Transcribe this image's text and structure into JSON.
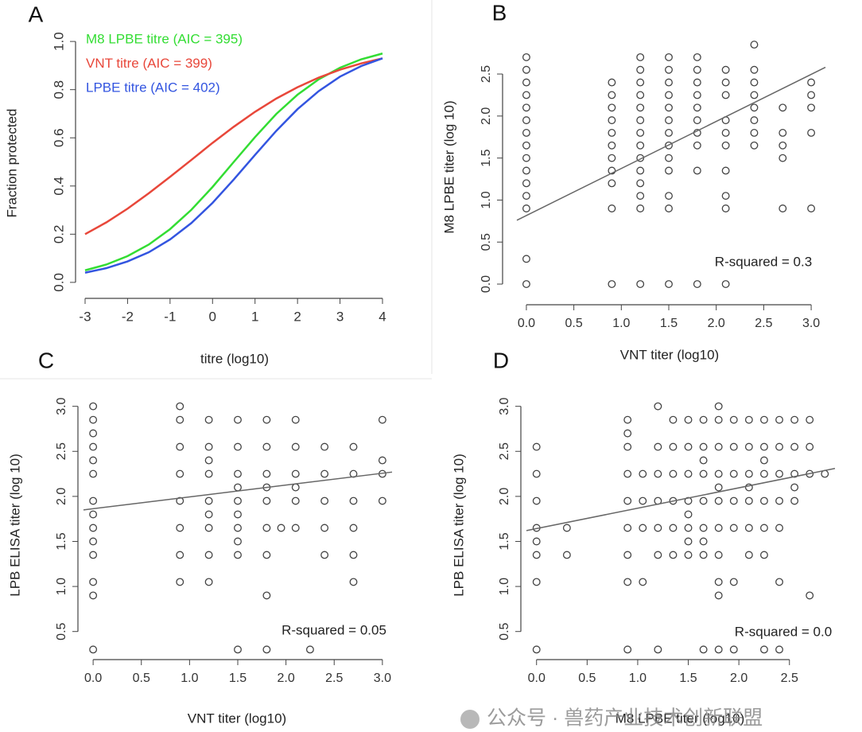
{
  "chart_data": [
    {
      "type": "line",
      "label": "A",
      "xlabel": "titre (log10)",
      "ylabel": "Fraction protected",
      "x": [
        -3,
        -2.5,
        -2,
        -1.5,
        -1,
        -0.5,
        0,
        0.5,
        1,
        1.5,
        2,
        2.5,
        3,
        3.5,
        4
      ],
      "series": [
        {
          "name": "M8 LPBE titre (AIC = 395)",
          "color": "#33dd33",
          "values": [
            0.05,
            0.074,
            0.109,
            0.157,
            0.221,
            0.301,
            0.396,
            0.5,
            0.603,
            0.699,
            0.779,
            0.843,
            0.891,
            0.926,
            0.95
          ]
        },
        {
          "name": "VNT titre (AIC = 399)",
          "color": "#e8473a",
          "values": [
            0.2,
            0.249,
            0.306,
            0.37,
            0.438,
            0.508,
            0.579,
            0.646,
            0.708,
            0.763,
            0.81,
            0.85,
            0.883,
            0.909,
            0.93
          ]
        },
        {
          "name": "LPBE titre (AIC = 402)",
          "color": "#3355e0",
          "values": [
            0.04,
            0.059,
            0.087,
            0.125,
            0.178,
            0.246,
            0.33,
            0.427,
            0.529,
            0.629,
            0.719,
            0.794,
            0.854,
            0.898,
            0.93
          ]
        }
      ],
      "xlim": [
        -3.2,
        4.2
      ],
      "xticks": [
        -3,
        -2,
        -1,
        0,
        1,
        2,
        3,
        4
      ],
      "ylim": [
        -0.04,
        1.04
      ],
      "yticks": [
        {
          "value": 0,
          "label": "0.0"
        },
        0.2,
        0.4,
        0.6,
        0.8,
        {
          "value": 1,
          "label": "1.0"
        }
      ],
      "legend": "upper-left"
    },
    {
      "type": "scatter",
      "label": "B",
      "xlabel": "VNT titer (log10)",
      "ylabel": "M8 LPBE titer (log 10)",
      "annotation": "R-squared = 0.3",
      "color": "#444444",
      "x": [
        0,
        0,
        0,
        0,
        0,
        0,
        0,
        0,
        0,
        0,
        0,
        0,
        0,
        0,
        0,
        0.9,
        0.9,
        0.9,
        0.9,
        0.9,
        0.9,
        0.9,
        0.9,
        0.9,
        0.9,
        0.9,
        1.2,
        1.2,
        1.2,
        1.2,
        1.2,
        1.2,
        1.2,
        1.2,
        1.2,
        1.2,
        1.2,
        1.2,
        1.2,
        1.2,
        1.5,
        1.5,
        1.5,
        1.5,
        1.5,
        1.5,
        1.5,
        1.5,
        1.5,
        1.5,
        1.5,
        1.5,
        1.5,
        1.8,
        1.8,
        1.8,
        1.8,
        1.8,
        1.8,
        1.8,
        1.8,
        1.8,
        1.8,
        2.1,
        2.1,
        2.1,
        2.1,
        2.1,
        2.1,
        2.1,
        2.1,
        2.1,
        2.1,
        2.4,
        2.4,
        2.4,
        2.4,
        2.4,
        2.4,
        2.4,
        2.4,
        2.7,
        2.7,
        2.7,
        2.7,
        2.7,
        3,
        3,
        3,
        3,
        3
      ],
      "values": [
        0,
        0.3,
        0.9,
        1.05,
        1.2,
        1.35,
        1.5,
        1.65,
        1.8,
        1.95,
        2.1,
        2.25,
        2.4,
        2.55,
        2.7,
        0,
        0.9,
        1.2,
        1.35,
        1.5,
        1.65,
        1.8,
        1.95,
        2.1,
        2.25,
        2.4,
        0,
        0.9,
        1.05,
        1.2,
        1.35,
        1.5,
        1.65,
        1.8,
        1.95,
        2.1,
        2.25,
        2.4,
        2.55,
        2.7,
        0,
        0.9,
        1.05,
        1.35,
        1.5,
        1.65,
        1.8,
        1.95,
        2.1,
        2.25,
        2.4,
        2.55,
        2.7,
        0,
        1.35,
        1.65,
        1.8,
        1.95,
        2.1,
        2.25,
        2.4,
        2.55,
        2.7,
        0,
        0.9,
        1.05,
        1.35,
        1.65,
        1.8,
        1.95,
        2.25,
        2.4,
        2.55,
        1.65,
        1.8,
        1.95,
        2.1,
        2.25,
        2.4,
        2.55,
        2.85,
        0.9,
        1.5,
        1.65,
        1.8,
        2.1,
        0.9,
        1.8,
        2.1,
        2.25,
        2.4
      ],
      "trend": {
        "x": [
          -0.1,
          3.15
        ],
        "y": [
          0.76,
          2.58
        ]
      },
      "xlim": [
        -0.1,
        3.15
      ],
      "xticks": [
        {
          "value": 0,
          "label": "0.0"
        },
        0.5,
        {
          "value": 1,
          "label": "1.0"
        },
        1.5,
        {
          "value": 2,
          "label": "2.0"
        },
        2.5,
        {
          "value": 3,
          "label": "3.0"
        }
      ],
      "ylim": [
        -0.1,
        2.9
      ],
      "yticks": [
        {
          "value": 0,
          "label": "0.0"
        },
        0.5,
        {
          "value": 1,
          "label": "1.0"
        },
        1.5,
        {
          "value": 2,
          "label": "2.0"
        },
        2.5
      ]
    },
    {
      "type": "scatter",
      "label": "C",
      "xlabel": "VNT titer (log10)",
      "ylabel": "LPB ELISA titer (log 10)",
      "annotation": "R-squared = 0.05",
      "color": "#444444",
      "x": [
        0,
        0,
        0,
        0,
        0,
        0,
        0,
        0,
        0,
        0,
        0,
        0,
        0,
        0,
        0.9,
        0.9,
        0.9,
        0.9,
        0.9,
        0.9,
        0.9,
        0.9,
        1.2,
        1.2,
        1.2,
        1.2,
        1.2,
        1.2,
        1.2,
        1.2,
        1.2,
        1.5,
        1.5,
        1.5,
        1.5,
        1.5,
        1.5,
        1.5,
        1.5,
        1.5,
        1.5,
        1.8,
        1.8,
        1.8,
        1.8,
        1.8,
        1.8,
        1.8,
        1.8,
        1.8,
        1.95,
        2.1,
        2.1,
        2.1,
        2.1,
        2.1,
        2.1,
        2.25,
        2.4,
        2.4,
        2.4,
        2.4,
        2.4,
        2.7,
        2.7,
        2.7,
        2.7,
        2.7,
        2.7,
        3,
        3,
        3,
        3
      ],
      "values": [
        0.3,
        0.9,
        1.05,
        1.35,
        1.5,
        1.65,
        1.8,
        1.95,
        2.25,
        2.4,
        2.55,
        2.7,
        2.85,
        3,
        1.05,
        1.35,
        1.65,
        1.95,
        2.25,
        2.55,
        2.85,
        3,
        1.05,
        1.35,
        1.65,
        1.8,
        1.95,
        2.25,
        2.4,
        2.55,
        2.85,
        0.3,
        1.35,
        1.5,
        1.65,
        1.8,
        1.95,
        2.1,
        2.25,
        2.55,
        2.85,
        0.3,
        0.9,
        1.35,
        1.65,
        1.95,
        2.1,
        2.25,
        2.55,
        2.85,
        1.65,
        1.65,
        1.95,
        2.1,
        2.25,
        2.55,
        2.85,
        0.3,
        1.35,
        1.65,
        1.95,
        2.25,
        2.55,
        1.05,
        1.35,
        1.65,
        1.95,
        2.25,
        2.55,
        1.95,
        2.25,
        2.4,
        2.85
      ],
      "trend": {
        "x": [
          -0.1,
          3.1
        ],
        "y": [
          1.85,
          2.27
        ]
      },
      "xlim": [
        -0.1,
        3.1
      ],
      "xticks": [
        {
          "value": 0,
          "label": "0.0"
        },
        0.5,
        {
          "value": 1,
          "label": "1.0"
        },
        1.5,
        {
          "value": 2,
          "label": "2.0"
        },
        2.5,
        {
          "value": 3,
          "label": "3.0"
        }
      ],
      "ylim": [
        0.25,
        3.05
      ],
      "yticks": [
        0.5,
        {
          "value": 1,
          "label": "1.0"
        },
        1.5,
        {
          "value": 2,
          "label": "2.0"
        },
        2.5,
        {
          "value": 3,
          "label": "3.0"
        }
      ]
    },
    {
      "type": "scatter",
      "label": "D",
      "xlabel": "M8 LPBE titer (log10)",
      "ylabel": "LPB ELISA titer (log 10)",
      "annotation": "R-squared = 0.0",
      "color": "#444444",
      "x": [
        0,
        0,
        0,
        0,
        0,
        0,
        0,
        0,
        0.3,
        0.3,
        0.9,
        0.9,
        0.9,
        0.9,
        0.9,
        0.9,
        0.9,
        0.9,
        0.9,
        1.05,
        1.05,
        1.05,
        1.05,
        1.2,
        1.2,
        1.2,
        1.2,
        1.2,
        1.2,
        1.2,
        1.35,
        1.35,
        1.35,
        1.35,
        1.35,
        1.35,
        1.5,
        1.5,
        1.5,
        1.5,
        1.5,
        1.5,
        1.5,
        1.5,
        1.65,
        1.65,
        1.65,
        1.65,
        1.65,
        1.65,
        1.65,
        1.65,
        1.65,
        1.8,
        1.8,
        1.8,
        1.8,
        1.8,
        1.8,
        1.8,
        1.8,
        1.8,
        1.8,
        1.8,
        1.95,
        1.95,
        1.95,
        1.95,
        1.95,
        1.95,
        1.95,
        2.1,
        2.1,
        2.1,
        2.1,
        2.1,
        2.1,
        2.1,
        2.25,
        2.25,
        2.25,
        2.25,
        2.25,
        2.25,
        2.25,
        2.25,
        2.4,
        2.4,
        2.4,
        2.4,
        2.4,
        2.4,
        2.4,
        2.55,
        2.55,
        2.55,
        2.55,
        2.55,
        2.7,
        2.7,
        2.7,
        2.7,
        2.85
      ],
      "values": [
        0.3,
        1.05,
        1.35,
        1.5,
        1.65,
        1.95,
        2.25,
        2.55,
        1.35,
        1.65,
        0.3,
        1.05,
        1.35,
        1.65,
        1.95,
        2.25,
        2.55,
        2.7,
        2.85,
        1.05,
        1.65,
        1.95,
        2.25,
        0.3,
        1.35,
        1.65,
        1.95,
        2.25,
        2.55,
        3,
        1.35,
        1.65,
        1.95,
        2.25,
        2.55,
        2.85,
        1.35,
        1.5,
        1.65,
        1.8,
        1.95,
        2.25,
        2.55,
        2.85,
        0.3,
        1.35,
        1.5,
        1.65,
        1.95,
        2.25,
        2.4,
        2.55,
        2.85,
        0.3,
        0.9,
        1.05,
        1.35,
        1.65,
        1.95,
        2.1,
        2.25,
        2.55,
        2.85,
        3,
        0.3,
        1.05,
        1.65,
        1.95,
        2.25,
        2.55,
        2.85,
        1.35,
        1.65,
        1.95,
        2.1,
        2.25,
        2.55,
        2.85,
        0.3,
        1.35,
        1.65,
        1.95,
        2.25,
        2.4,
        2.55,
        2.85,
        0.3,
        1.05,
        1.65,
        1.95,
        2.25,
        2.55,
        2.85,
        1.95,
        2.1,
        2.25,
        2.55,
        2.85,
        0.9,
        2.25,
        2.55,
        2.85,
        2.25
      ],
      "trend": {
        "x": [
          -0.1,
          2.95
        ],
        "y": [
          1.62,
          2.31
        ]
      },
      "xlim": [
        -0.1,
        2.95
      ],
      "xticks": [
        {
          "value": 0,
          "label": "0.0"
        },
        0.5,
        {
          "value": 1,
          "label": "1.0"
        },
        1.5,
        {
          "value": 2,
          "label": "2.0"
        },
        2.5
      ],
      "ylim": [
        0.25,
        3.05
      ],
      "yticks": [
        0.5,
        {
          "value": 1,
          "label": "1.0"
        },
        1.5,
        {
          "value": 2,
          "label": "2.0"
        },
        2.5,
        {
          "value": 3,
          "label": "3.0"
        }
      ]
    }
  ],
  "watermark": "公众号 · 兽药产业技术创新联盟"
}
